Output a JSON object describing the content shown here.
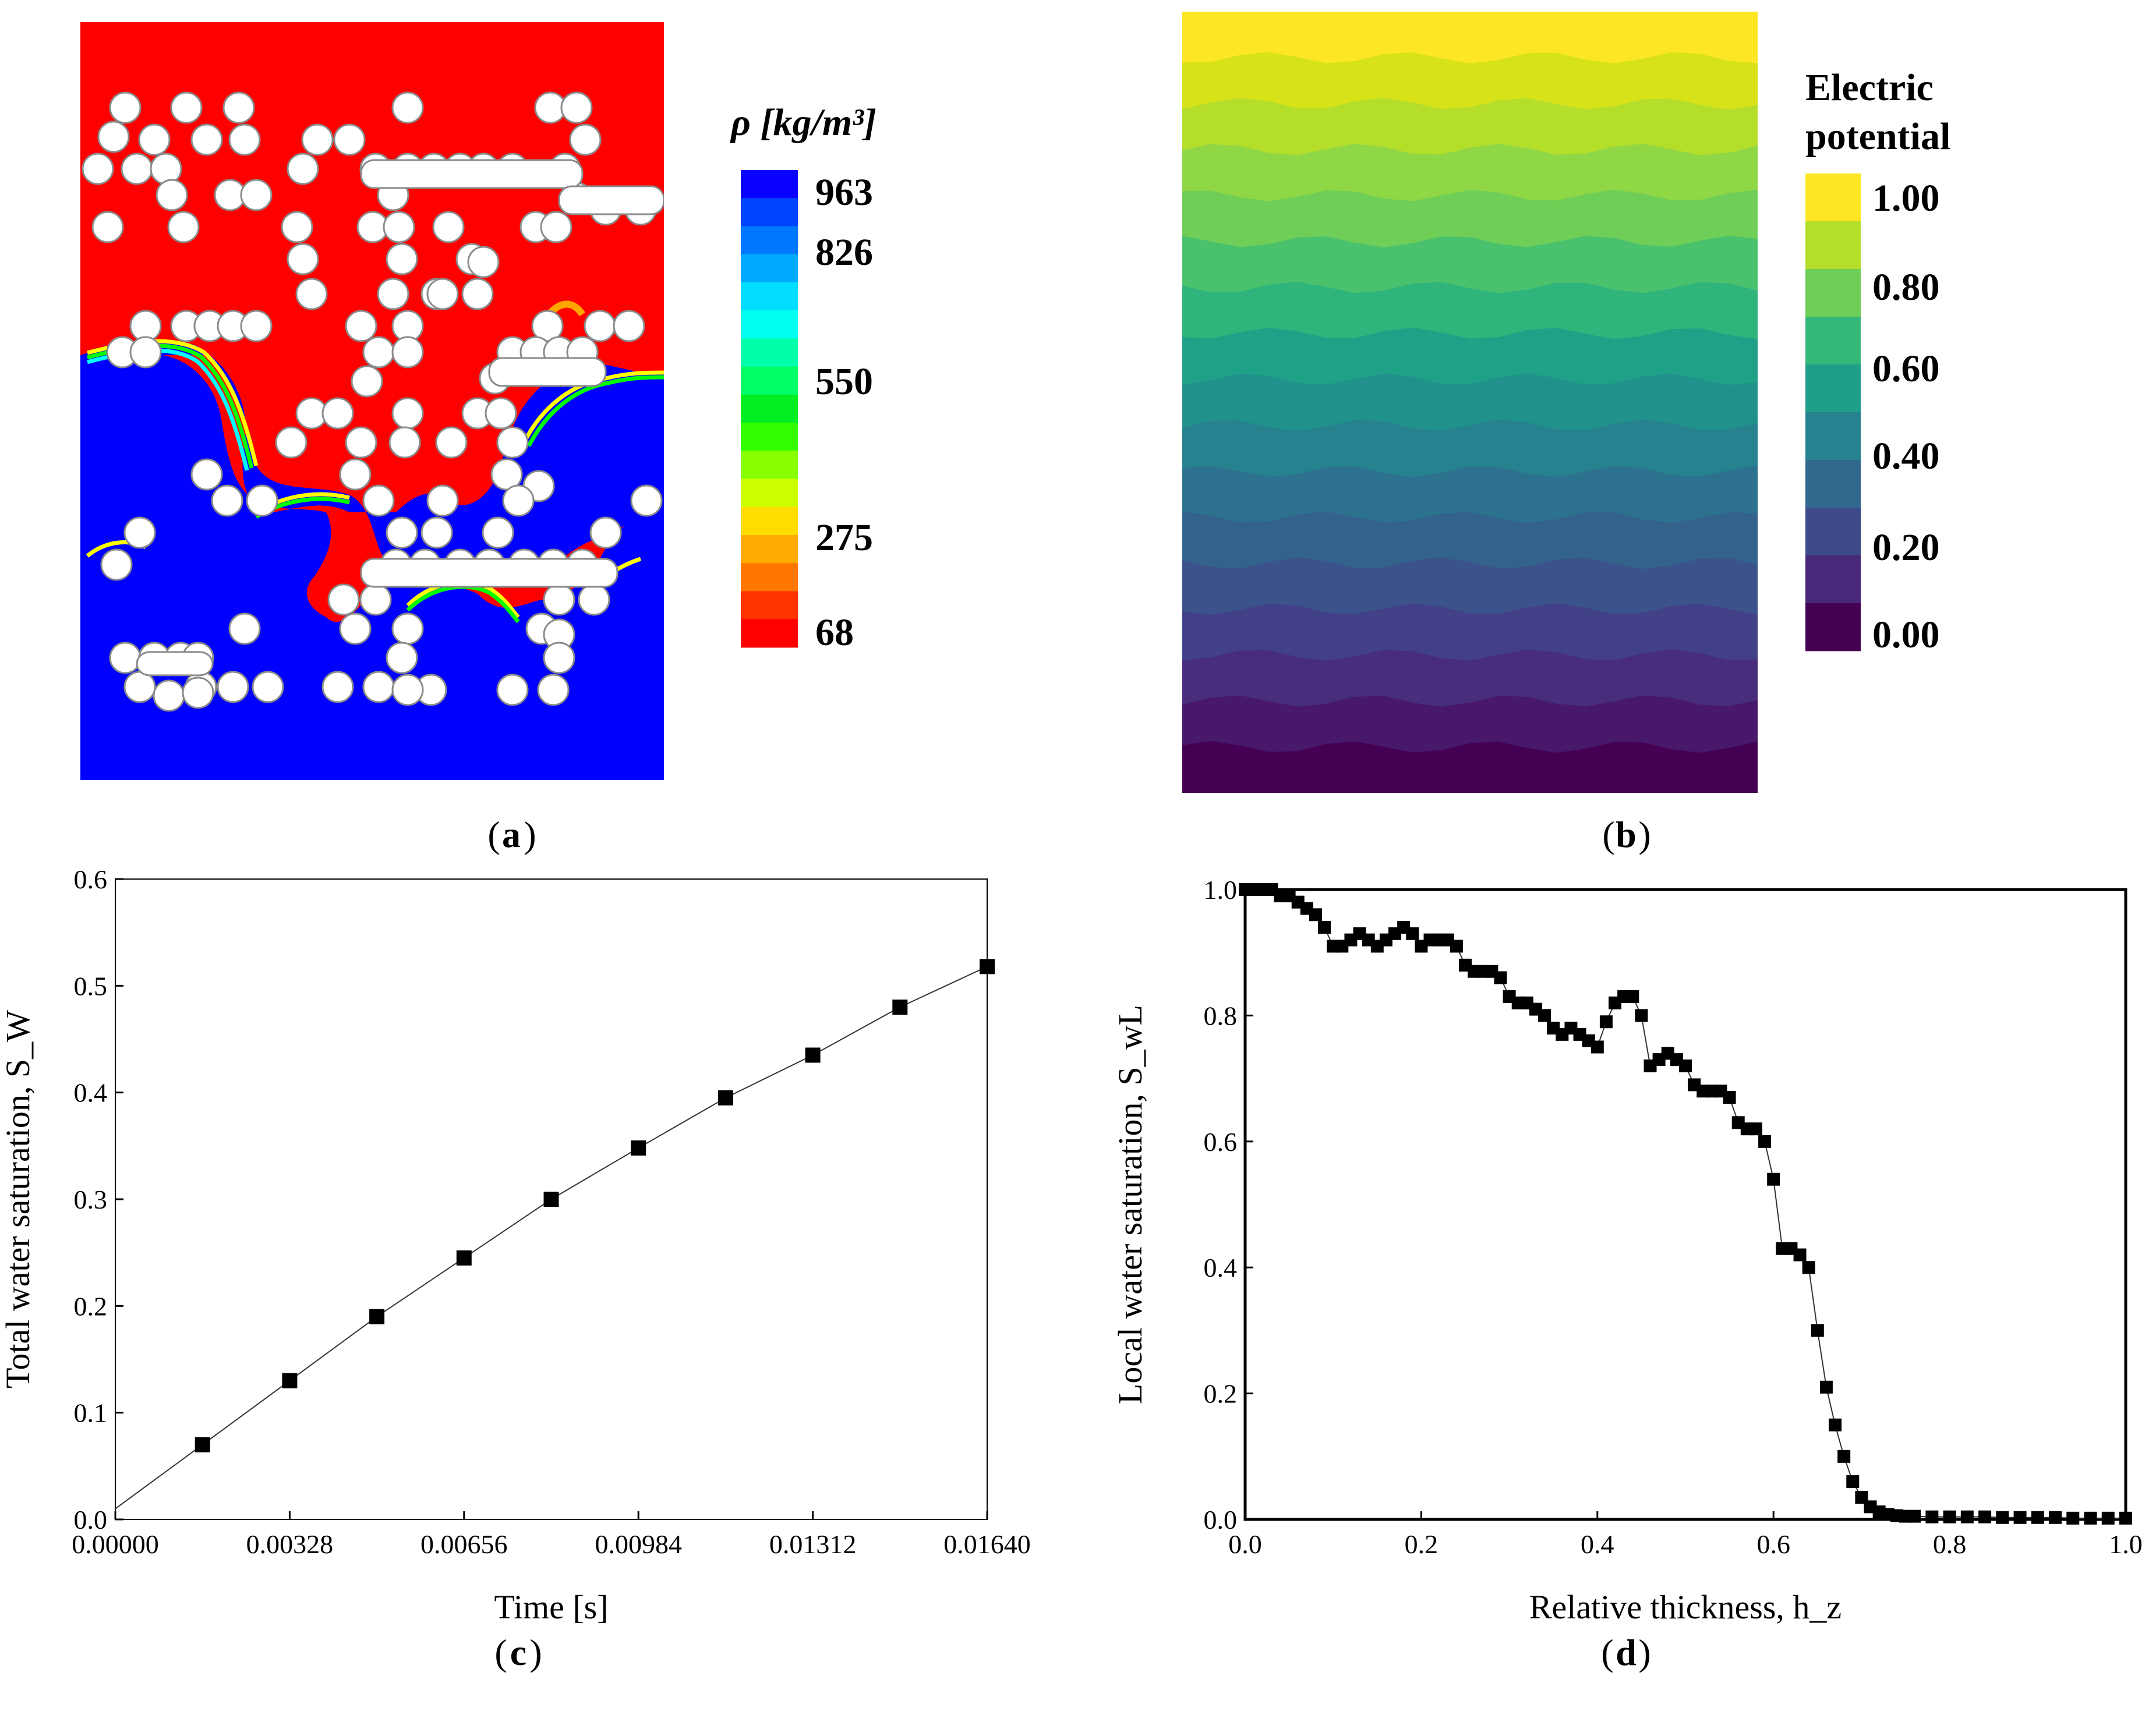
{
  "panels": {
    "a": {
      "caption": "a",
      "colorbar_title": "ρ [kg/m³]",
      "colorbar_labels": [
        "963",
        "826",
        "550",
        "275",
        "68"
      ],
      "colors": {
        "liquid": "#0000ff",
        "gas": "#ff0000",
        "solid": "#ffffff"
      }
    },
    "b": {
      "caption": "b",
      "colorbar_title_line1": "Electric",
      "colorbar_title_line2": "potential",
      "colorbar_labels": [
        "1.00",
        "0.80",
        "0.60",
        "0.40",
        "0.20",
        "0.00"
      ]
    },
    "c": {
      "caption": "c"
    },
    "d": {
      "caption": "d"
    }
  },
  "chart_data": [
    {
      "id": "c",
      "type": "line",
      "xlabel": "Time [s]",
      "ylabel": "Total water saturation, S_W",
      "xlim": [
        0,
        0.0164
      ],
      "ylim": [
        0,
        0.6
      ],
      "xticks": [
        "0.00000",
        "0.00328",
        "0.00656",
        "0.00984",
        "0.01312",
        "0.01640"
      ],
      "xtick_values": [
        0,
        0.00328,
        0.00656,
        0.00984,
        0.01312,
        0.0164
      ],
      "yticks": [
        "0.0",
        "0.1",
        "0.2",
        "0.3",
        "0.4",
        "0.5",
        "0.6"
      ],
      "ytick_values": [
        0,
        0.1,
        0.2,
        0.3,
        0.4,
        0.5,
        0.6
      ],
      "series": [
        {
          "name": "S_W",
          "x": [
            0.00164,
            0.00328,
            0.00492,
            0.00656,
            0.0082,
            0.00984,
            0.01148,
            0.01312,
            0.01476,
            0.0164
          ],
          "values": [
            0.07,
            0.13,
            0.19,
            0.245,
            0.3,
            0.348,
            0.395,
            0.435,
            0.48,
            0.518
          ]
        }
      ],
      "line_start": [
        0,
        0.01
      ]
    },
    {
      "id": "d",
      "type": "line",
      "xlabel": "Relative thickness, h_z",
      "ylabel": "Local water saturation, S_wL",
      "xlim": [
        0,
        1
      ],
      "ylim": [
        0,
        1
      ],
      "xticks": [
        "0.0",
        "0.2",
        "0.4",
        "0.6",
        "0.8",
        "1.0"
      ],
      "xtick_values": [
        0,
        0.2,
        0.4,
        0.6,
        0.8,
        1.0
      ],
      "yticks": [
        "0.0",
        "0.2",
        "0.4",
        "0.6",
        "0.8",
        "1.0"
      ],
      "ytick_values": [
        0,
        0.2,
        0.4,
        0.6,
        0.8,
        1.0
      ],
      "series": [
        {
          "name": "S_wL",
          "x": [
            0.0,
            0.01,
            0.02,
            0.03,
            0.04,
            0.05,
            0.06,
            0.07,
            0.08,
            0.09,
            0.1,
            0.11,
            0.12,
            0.13,
            0.14,
            0.15,
            0.16,
            0.17,
            0.18,
            0.19,
            0.2,
            0.21,
            0.22,
            0.23,
            0.24,
            0.25,
            0.26,
            0.27,
            0.28,
            0.29,
            0.3,
            0.31,
            0.32,
            0.33,
            0.34,
            0.35,
            0.36,
            0.37,
            0.38,
            0.39,
            0.4,
            0.41,
            0.42,
            0.43,
            0.44,
            0.45,
            0.46,
            0.47,
            0.48,
            0.49,
            0.5,
            0.51,
            0.52,
            0.53,
            0.54,
            0.55,
            0.56,
            0.57,
            0.58,
            0.59,
            0.6,
            0.61,
            0.62,
            0.63,
            0.64,
            0.65,
            0.66,
            0.67,
            0.68,
            0.69,
            0.7,
            0.71,
            0.72,
            0.73,
            0.74,
            0.75,
            0.76,
            0.78,
            0.8,
            0.82,
            0.84,
            0.86,
            0.88,
            0.9,
            0.92,
            0.94,
            0.96,
            0.98,
            1.0
          ],
          "values": [
            1.0,
            1.0,
            1.0,
            1.0,
            0.99,
            0.99,
            0.98,
            0.97,
            0.96,
            0.94,
            0.91,
            0.91,
            0.92,
            0.93,
            0.92,
            0.91,
            0.92,
            0.93,
            0.94,
            0.93,
            0.91,
            0.92,
            0.92,
            0.92,
            0.91,
            0.88,
            0.87,
            0.87,
            0.87,
            0.86,
            0.83,
            0.82,
            0.82,
            0.81,
            0.8,
            0.78,
            0.77,
            0.78,
            0.77,
            0.76,
            0.75,
            0.79,
            0.82,
            0.83,
            0.83,
            0.8,
            0.72,
            0.73,
            0.74,
            0.73,
            0.72,
            0.69,
            0.68,
            0.68,
            0.68,
            0.67,
            0.63,
            0.62,
            0.62,
            0.6,
            0.54,
            0.43,
            0.43,
            0.42,
            0.4,
            0.3,
            0.21,
            0.15,
            0.1,
            0.06,
            0.035,
            0.02,
            0.012,
            0.008,
            0.006,
            0.005,
            0.005,
            0.004,
            0.004,
            0.004,
            0.004,
            0.003,
            0.003,
            0.003,
            0.003,
            0.002,
            0.002,
            0.002,
            0.002
          ]
        }
      ]
    }
  ]
}
